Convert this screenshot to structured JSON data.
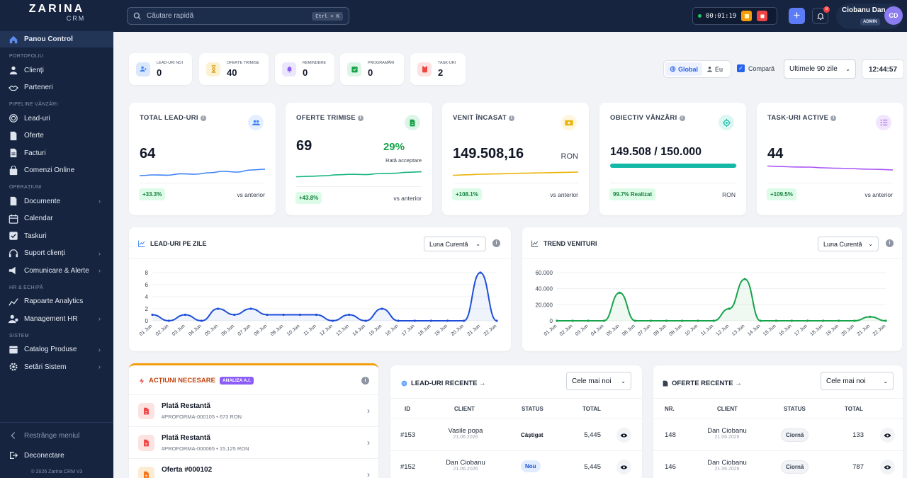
{
  "app": {
    "logo_main": "ZARINA",
    "logo_sub": "CRM"
  },
  "sidebar": {
    "active": "Panou Control",
    "sections": [
      {
        "title": "PORTOFOLIU",
        "items": [
          "Clienți",
          "Parteneri"
        ]
      },
      {
        "title": "PIPELINE VÂNZĂRI",
        "items": [
          "Lead-uri",
          "Oferte",
          "Facturi",
          "Comenzi Online"
        ]
      },
      {
        "title": "OPERAȚIUNI",
        "items": [
          "Documente",
          "Calendar",
          "Taskuri",
          "Suport clienți",
          "Comunicare & Alerte"
        ]
      },
      {
        "title": "HR & ECHIPĂ",
        "items": [
          "Rapoarte Analytics",
          "Management HR"
        ]
      },
      {
        "title": "SISTEM",
        "items": [
          "Catalog Produse",
          "Setări Sistem"
        ]
      }
    ],
    "collapse": "Restrânge meniul",
    "logout": "Deconectare",
    "footer": "© 2026 Zarina CRM V3"
  },
  "topbar": {
    "search_placeholder": "Căutare rapidă",
    "search_shortcut": "Ctrl + K",
    "timer": "00:01:19",
    "notif_count": "8",
    "user_name": "Ciobanu Dan",
    "user_role": "ADMIN",
    "user_initials": "CD"
  },
  "quick_stats": [
    {
      "label": "LEAD-URI NOI",
      "value": "0",
      "icon": "users-icon",
      "color": "#dbe7fb",
      "fg": "#3b82f6"
    },
    {
      "label": "OFERTE TRIMISE",
      "value": "40",
      "icon": "hourglass-icon",
      "color": "#fdf1d3",
      "fg": "#d49a08"
    },
    {
      "label": "REMINDERE",
      "value": "0",
      "icon": "bell-icon",
      "color": "#ece6fd",
      "fg": "#8b5cf6"
    },
    {
      "label": "PROGRAMĂRI",
      "value": "0",
      "icon": "calendar-check-icon",
      "color": "#dcf5e7",
      "fg": "#16a34a"
    },
    {
      "label": "TASK-URI",
      "value": "2",
      "icon": "clipboard-icon",
      "color": "#fde2e2",
      "fg": "#ef4444"
    }
  ],
  "controls": {
    "scope_global": "Global",
    "scope_me": "Eu",
    "compare": "Compară",
    "period": "Ultimele 90 zile",
    "clock": "12:44:57"
  },
  "kpis": {
    "leads": {
      "title": "TOTAL LEAD-URI",
      "value": "64",
      "delta": "+33.3%",
      "vs": "vs anterior",
      "color": "#3b82f6",
      "trend": [
        0.15,
        0.2,
        0.18,
        0.28,
        0.25,
        0.35,
        0.45,
        0.4,
        0.55,
        0.6
      ]
    },
    "offers": {
      "title": "OFERTE TRIMISE",
      "value": "69",
      "rate": "29%",
      "rate_label": "Rată acceptare",
      "delta": "+43.8%",
      "vs": "vs anterior",
      "color": "#16b57f",
      "trend": [
        0.1,
        0.15,
        0.2,
        0.3,
        0.35,
        0.32,
        0.42,
        0.45,
        0.55,
        0.6
      ]
    },
    "revenue": {
      "title": "VENIT ÎNCASAT",
      "value": "149.508,16",
      "currency": "RON",
      "delta": "+108.1%",
      "vs": "vs anterior",
      "color": "#eab308",
      "trend": [
        0.15,
        0.22,
        0.3,
        0.34,
        0.38,
        0.44,
        0.48,
        0.52,
        0.56,
        0.6
      ]
    },
    "target": {
      "title": "OBIECTIV VÂNZĂRI",
      "value": "149.508 / 150.000",
      "progress": 0.997,
      "realized": "99.7% Realizat",
      "currency": "RON",
      "color": "#14b8a6"
    },
    "tasks": {
      "title": "TASK-URI ACTIVE",
      "value": "44",
      "delta": "+109.5%",
      "vs": "vs anterior",
      "color": "#a855f7",
      "trend": [
        0.85,
        0.78,
        0.72,
        0.7,
        0.6,
        0.55,
        0.5,
        0.42,
        0.38,
        0.3
      ]
    }
  },
  "charts": {
    "leads_per_day": {
      "title": "LEAD-URI PE ZILE",
      "filter": "Luna Curentă"
    },
    "revenue_trend": {
      "title": "TREND VENITURI",
      "filter": "Luna Curentă"
    }
  },
  "chart_data": [
    {
      "type": "area",
      "title": "LEAD-URI PE ZILE",
      "x": [
        "01 Jun",
        "02 Jun",
        "03 Jun",
        "04 Jun",
        "05 Jun",
        "06 Jun",
        "07 Jun",
        "08 Jun",
        "09 Jun",
        "10 Jun",
        "11 Jun",
        "12 Jun",
        "13 Jun",
        "14 Jun",
        "15 Jun",
        "16 Jun",
        "17 Jun",
        "18 Jun",
        "19 Jun",
        "20 Jun",
        "21 Jun",
        "22 Jun"
      ],
      "values": [
        1,
        0,
        1,
        0,
        2,
        1,
        2,
        1,
        1,
        1,
        1,
        0,
        1,
        0,
        2,
        0,
        0,
        0,
        0,
        0,
        8,
        0
      ],
      "yticks": [
        0,
        2,
        4,
        6,
        8
      ],
      "ylim": [
        0,
        8
      ],
      "color": "#1d4ed8"
    },
    {
      "type": "area",
      "title": "TREND VENITURI",
      "x": [
        "01 Jun",
        "02 Jun",
        "03 Jun",
        "04 Jun",
        "05 Jun",
        "06 Jun",
        "07 Jun",
        "08 Jun",
        "09 Jun",
        "10 Jun",
        "11 Jun",
        "12 Jun",
        "13 Jun",
        "14 Jun",
        "15 Jun",
        "16 Jun",
        "17 Jun",
        "18 Jun",
        "19 Jun",
        "20 Jun",
        "21 Jun",
        "22 Jun"
      ],
      "values": [
        0,
        0,
        0,
        0,
        35000,
        0,
        0,
        0,
        0,
        0,
        0,
        15000,
        52000,
        0,
        0,
        0,
        0,
        0,
        0,
        0,
        5000,
        0
      ],
      "yticks": [
        0,
        20000,
        40000,
        60000
      ],
      "ytick_labels": [
        "0",
        "20.000",
        "40.000",
        "60.000"
      ],
      "ylim": [
        0,
        60000
      ],
      "color": "#16a34a"
    }
  ],
  "actions": {
    "title": "ACȚIUNI NECESARE",
    "badge": "ANALIZA A.I.",
    "items": [
      {
        "title": "Plată Restantă",
        "sub": "#PROFORMA-000105 • 673 RON",
        "color": "#fde2e2",
        "fg": "#ef4444"
      },
      {
        "title": "Plată Restantă",
        "sub": "#PROFORMA-000065 • 15,125 RON",
        "color": "#fde2e2",
        "fg": "#ef4444"
      },
      {
        "title": "Oferta #000102",
        "sub": "",
        "color": "#fdebd3",
        "fg": "#f97316"
      }
    ]
  },
  "recent_leads": {
    "title": "LEAD-URI RECENTE →",
    "filter": "Cele mai noi",
    "columns": [
      "ID",
      "CLIENT",
      "STATUS",
      "TOTAL"
    ],
    "rows": [
      {
        "id": "#153",
        "client": "Vasile popa",
        "date": "21.06.2026",
        "status": "Câștigat",
        "total": "5,445"
      },
      {
        "id": "#152",
        "client": "Dan Ciobanu",
        "date": "21.06.2026",
        "status": "Nou",
        "total": "5,445"
      }
    ]
  },
  "recent_offers": {
    "title": "OFERTE RECENTE →",
    "filter": "Cele mai noi",
    "columns": [
      "NR.",
      "CLIENT",
      "STATUS",
      "TOTAL"
    ],
    "rows": [
      {
        "id": "148",
        "client": "Dan Ciobanu",
        "date": "21.06.2026",
        "status": "Ciornă",
        "total": "133"
      },
      {
        "id": "146",
        "client": "Dan Ciobanu",
        "date": "21.06.2026",
        "status": "Ciornă",
        "total": "787"
      }
    ]
  }
}
